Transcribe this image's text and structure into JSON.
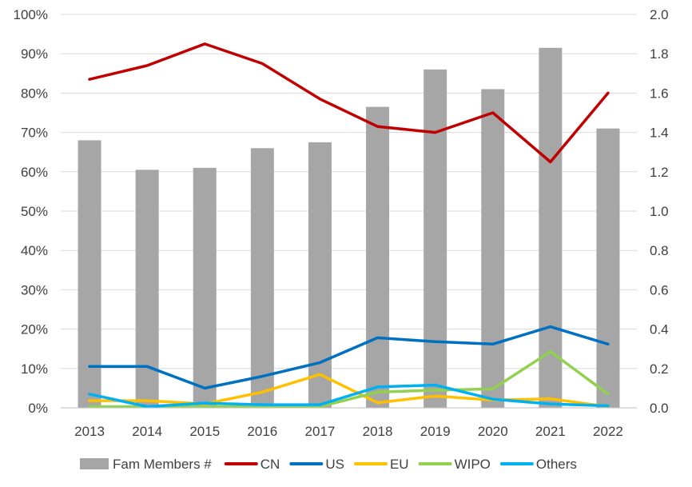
{
  "chart_data": {
    "type": "bar",
    "categories": [
      "2013",
      "2014",
      "2015",
      "2016",
      "2017",
      "2018",
      "2019",
      "2020",
      "2021",
      "2022"
    ],
    "y_left": {
      "ylim": [
        0,
        1.0
      ],
      "ticks": [
        0,
        0.1,
        0.2,
        0.3,
        0.4,
        0.5,
        0.6,
        0.7,
        0.8,
        0.9,
        1.0
      ],
      "tick_labels": [
        "0%",
        "10%",
        "20%",
        "30%",
        "40%",
        "50%",
        "60%",
        "70%",
        "80%",
        "90%",
        "100%"
      ]
    },
    "y_right": {
      "ylim": [
        0,
        2.0
      ],
      "ticks": [
        0,
        0.2,
        0.4,
        0.6,
        0.8,
        1.0,
        1.2,
        1.4,
        1.6,
        1.8,
        2.0
      ],
      "tick_labels": [
        "0.0",
        "0.2",
        "0.4",
        "0.6",
        "0.8",
        "1.0",
        "1.2",
        "1.4",
        "1.6",
        "1.8",
        "2.0"
      ]
    },
    "grid": true,
    "legend_position": "bottom",
    "bars": {
      "name": "Fam Members #",
      "axis": "right",
      "color": "#a6a6a6",
      "values": [
        1.36,
        1.21,
        1.22,
        1.32,
        1.35,
        1.53,
        1.72,
        1.62,
        1.83,
        1.42
      ]
    },
    "series": [
      {
        "name": "CN",
        "axis": "left",
        "color": "#c00000",
        "values": [
          0.835,
          0.87,
          0.925,
          0.875,
          0.785,
          0.715,
          0.7,
          0.75,
          0.625,
          0.8
        ]
      },
      {
        "name": "US",
        "axis": "left",
        "color": "#0070c0",
        "values": [
          0.105,
          0.105,
          0.05,
          0.08,
          0.115,
          0.178,
          0.168,
          0.162,
          0.206,
          0.162
        ]
      },
      {
        "name": "EU",
        "axis": "left",
        "color": "#ffc000",
        "values": [
          0.018,
          0.018,
          0.01,
          0.04,
          0.085,
          0.013,
          0.03,
          0.02,
          0.023,
          0.003
        ]
      },
      {
        "name": "WIPO",
        "axis": "left",
        "color": "#92d050",
        "values": [
          0.003,
          0.003,
          0.003,
          0.003,
          0.003,
          0.04,
          0.045,
          0.048,
          0.143,
          0.035
        ]
      },
      {
        "name": "Others",
        "axis": "left",
        "color": "#00b0f0",
        "values": [
          0.035,
          0.003,
          0.012,
          0.008,
          0.008,
          0.053,
          0.058,
          0.022,
          0.01,
          0.005
        ]
      }
    ]
  }
}
